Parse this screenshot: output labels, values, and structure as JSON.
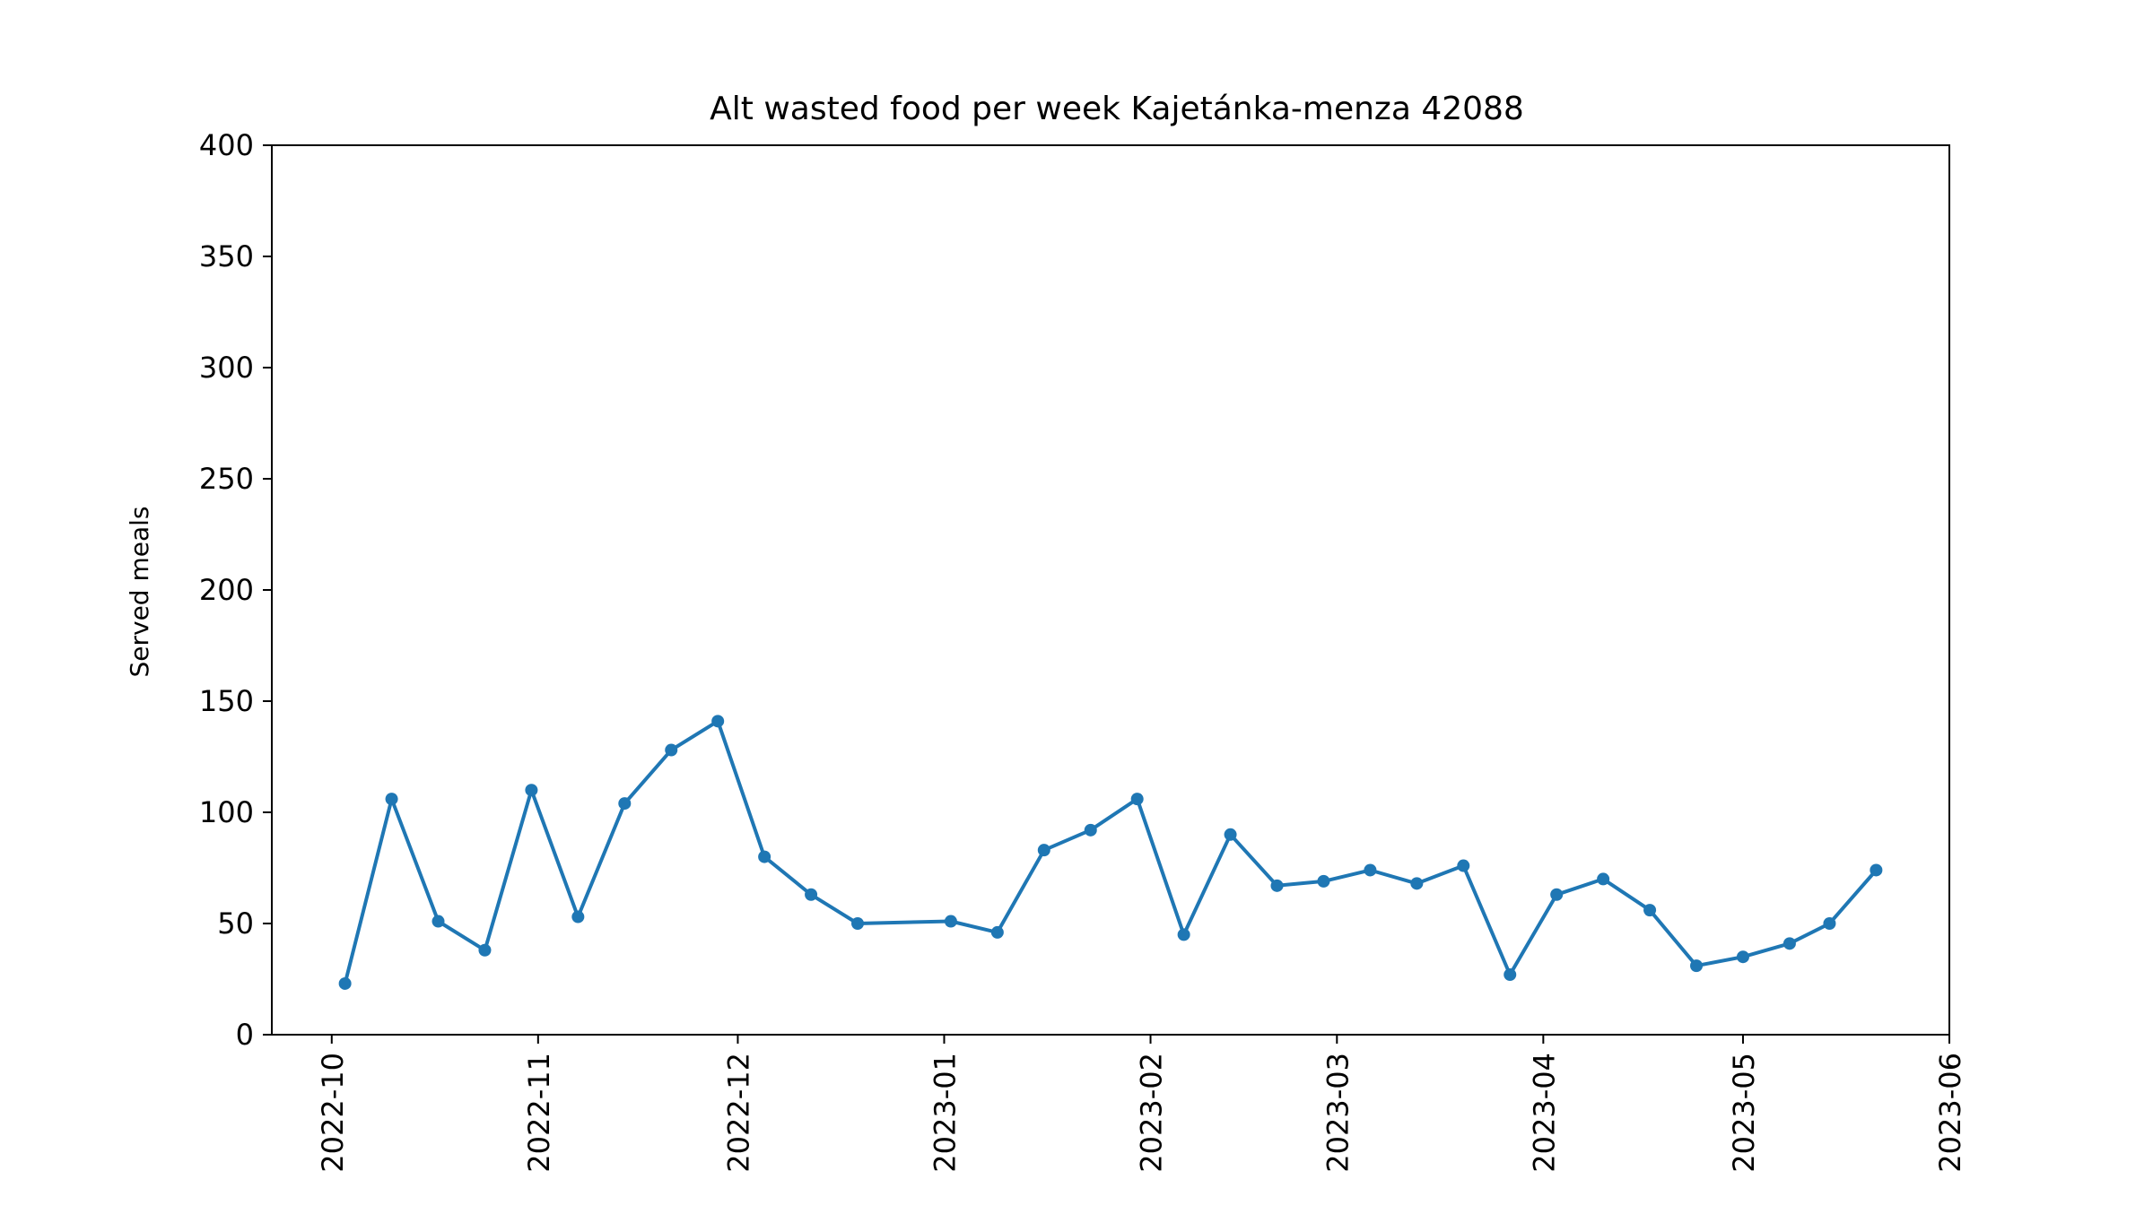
{
  "chart_data": {
    "type": "line",
    "title": "Alt wasted food per week Kajetánka-menza 42088",
    "xlabel": "",
    "ylabel": "Served meals",
    "ylim": [
      0,
      400
    ],
    "xlim": [
      "2022-09-22",
      "2023-06-01"
    ],
    "grid": false,
    "line_color": "#1f77b4",
    "yticks": [
      0,
      50,
      100,
      150,
      200,
      250,
      300,
      350,
      400
    ],
    "xticks": [
      "2022-10-01",
      "2022-11-01",
      "2022-12-01",
      "2023-01-01",
      "2023-02-01",
      "2023-03-01",
      "2023-04-01",
      "2023-05-01",
      "2023-06-01"
    ],
    "xtick_labels": [
      "2022-10",
      "2022-11",
      "2022-12",
      "2023-01",
      "2023-02",
      "2023-03",
      "2023-04",
      "2023-05",
      "2023-06"
    ],
    "series": [
      {
        "x": [
          "2022-10-03",
          "2022-10-10",
          "2022-10-17",
          "2022-10-24",
          "2022-10-31",
          "2022-11-07",
          "2022-11-14",
          "2022-11-21",
          "2022-11-28",
          "2022-12-05",
          "2022-12-12",
          "2022-12-19",
          "2023-01-02",
          "2023-01-09",
          "2023-01-16",
          "2023-01-23",
          "2023-01-30",
          "2023-02-06",
          "2023-02-13",
          "2023-02-20",
          "2023-02-27",
          "2023-03-06",
          "2023-03-13",
          "2023-03-20",
          "2023-03-27",
          "2023-04-03",
          "2023-04-10",
          "2023-04-17",
          "2023-04-24",
          "2023-05-01",
          "2023-05-08",
          "2023-05-14",
          "2023-05-21"
        ],
        "y": [
          23,
          106,
          51,
          38,
          110,
          53,
          104,
          128,
          141,
          80,
          63,
          50,
          51,
          46,
          83,
          92,
          106,
          45,
          90,
          67,
          69,
          74,
          68,
          76,
          27,
          63,
          70,
          56,
          31,
          35,
          41,
          50,
          74
        ]
      }
    ]
  }
}
